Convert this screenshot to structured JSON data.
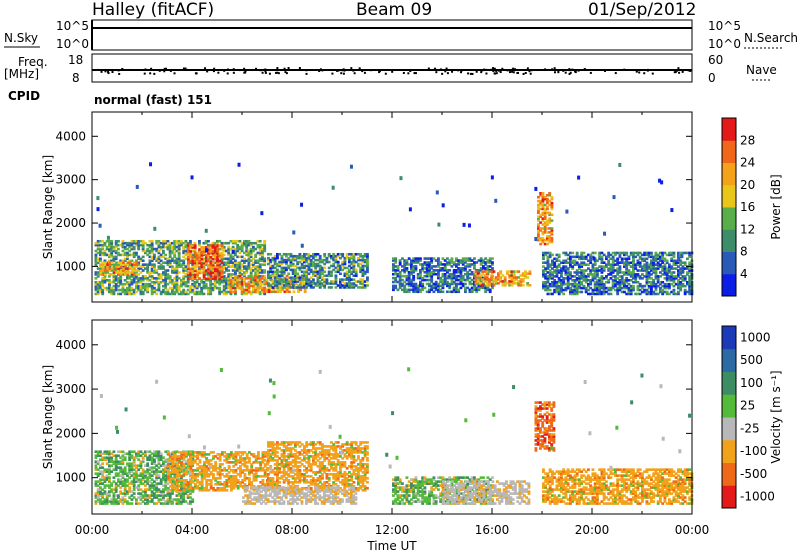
{
  "header": {
    "station": "Halley (fitACF)",
    "beam": "Beam 09",
    "date": "01/Sep/2012"
  },
  "info_panels": {
    "nsky_label": "N.Sky",
    "nsky_ticks": [
      "10^5",
      "10^0"
    ],
    "nsearch_label": "N.Search",
    "nsearch_ticks": [
      "10^5",
      "10^0"
    ],
    "freq_label": "Freq.",
    "freq_unit": "[MHz]",
    "freq_ticks": [
      "18",
      "8"
    ],
    "nave_label": "Nave",
    "nave_ticks": [
      "60",
      "0"
    ],
    "cpid_label": "CPID",
    "cpid_value": "normal (fast) 151"
  },
  "chart_data": [
    {
      "type": "heatmap",
      "panel": "power",
      "ylabel": "Slant Range [km]",
      "xlabel": "",
      "xlim": [
        0,
        24
      ],
      "ylim": [
        180,
        4560
      ],
      "yticks": [
        1000,
        2000,
        3000,
        4000
      ],
      "colorbar": {
        "label": "Power [dB]",
        "min": 0,
        "max": 32,
        "ticks": [
          4,
          8,
          12,
          16,
          20,
          24,
          28
        ],
        "colors": [
          "#0a1ee6",
          "#2a5ab8",
          "#3d8c6a",
          "#5aae4a",
          "#e8c61a",
          "#f4a21a",
          "#f0661a",
          "#e41a1a"
        ]
      },
      "echo_regions": [
        {
          "t0": 0.1,
          "t1": 6.9,
          "r0": 350,
          "r1": 1600,
          "dB": 12,
          "note": "main evening/dawn band"
        },
        {
          "t0": 3.8,
          "t1": 5.2,
          "r0": 700,
          "r1": 1500,
          "dB": 26,
          "note": "strong core"
        },
        {
          "t0": 0.3,
          "t1": 1.8,
          "r0": 800,
          "r1": 1100,
          "dB": 22
        },
        {
          "t0": 5.5,
          "t1": 8.5,
          "r0": 400,
          "r1": 800,
          "dB": 22,
          "note": "low-range strong stripe"
        },
        {
          "t0": 7.0,
          "t1": 11.0,
          "r0": 500,
          "r1": 1300,
          "dB": 10
        },
        {
          "t0": 12.0,
          "t1": 16.0,
          "r0": 400,
          "r1": 1200,
          "dB": 8
        },
        {
          "t0": 15.3,
          "t1": 17.5,
          "r0": 550,
          "r1": 900,
          "dB": 22
        },
        {
          "t0": 17.8,
          "t1": 18.4,
          "r0": 1500,
          "r1": 2700,
          "dB": 22
        },
        {
          "t0": 18.0,
          "t1": 24.0,
          "r0": 350,
          "r1": 1300,
          "dB": 8
        }
      ]
    },
    {
      "type": "heatmap",
      "panel": "velocity",
      "ylabel": "Slant Range [km]",
      "xlabel": "Time UT",
      "xlim": [
        0,
        24
      ],
      "ylim": [
        180,
        4560
      ],
      "yticks": [
        1000,
        2000,
        3000,
        4000
      ],
      "xtick_labels": [
        "00:00",
        "04:00",
        "08:00",
        "12:00",
        "16:00",
        "20:00",
        "00:00"
      ],
      "colorbar": {
        "label": "Velocity [m s⁻¹]",
        "ticks": [
          "1000",
          "500",
          "100",
          "25",
          "-25",
          "-100",
          "-500",
          "-1000"
        ],
        "colors": [
          "#1a3ab8",
          "#2c6aa6",
          "#3c8c64",
          "#54ba3a",
          "#b8b8b8",
          "#f2a21a",
          "#ee6a1a",
          "#e41a1a"
        ]
      },
      "echo_regions": [
        {
          "t0": 0.1,
          "t1": 4.0,
          "r0": 400,
          "r1": 1600,
          "v": "green-mix",
          "note": "mixed green/orange"
        },
        {
          "t0": 3.0,
          "t1": 7.0,
          "r0": 700,
          "r1": 1600,
          "v": -100
        },
        {
          "t0": 7.0,
          "t1": 11.0,
          "r0": 700,
          "r1": 1800,
          "v": -100
        },
        {
          "t0": 6.0,
          "t1": 10.5,
          "r0": 400,
          "r1": 800,
          "v": 0
        },
        {
          "t0": 12.0,
          "t1": 16.0,
          "r0": 400,
          "r1": 1000,
          "v": "green-mix"
        },
        {
          "t0": 14.0,
          "t1": 17.5,
          "r0": 400,
          "r1": 900,
          "v": 0
        },
        {
          "t0": 17.7,
          "t1": 18.5,
          "r0": 1600,
          "r1": 2700,
          "v": -500
        },
        {
          "t0": 18.0,
          "t1": 24.0,
          "r0": 400,
          "r1": 1200,
          "v": -100
        }
      ]
    }
  ]
}
